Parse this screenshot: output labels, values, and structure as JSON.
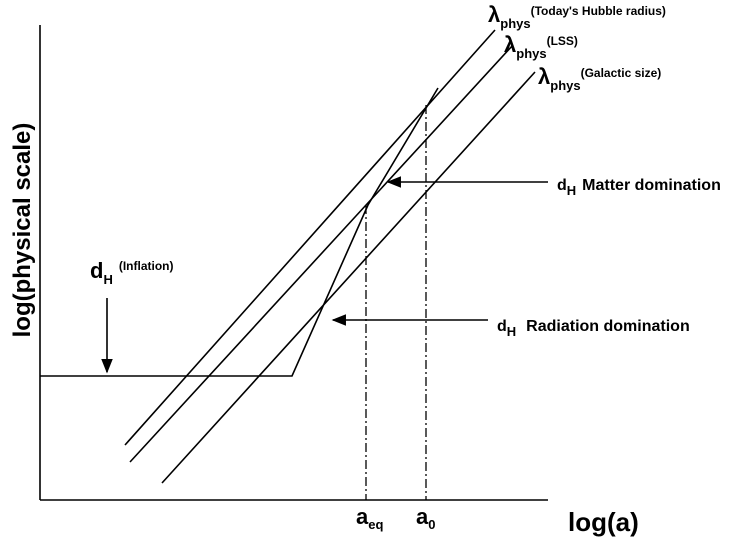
{
  "axes": {
    "y_label": "log(physical scale)",
    "x_label": "log(a)"
  },
  "scales": [
    {
      "symbol": "λ",
      "sub": "phys",
      "note": "(Today's Hubble radius)"
    },
    {
      "symbol": "λ",
      "sub": "phys",
      "note": "(LSS)"
    },
    {
      "symbol": "λ",
      "sub": "phys",
      "note": "(Galactic size)"
    }
  ],
  "horizons": [
    {
      "symbol": "d",
      "sub": "H",
      "note": "(Inflation)"
    },
    {
      "symbol": "d",
      "sub": "H",
      "note": "Matter domination"
    },
    {
      "symbol": "d",
      "sub": "H",
      "note": "Radiation domination"
    }
  ],
  "markers": [
    {
      "symbol": "a",
      "sub": "eq"
    },
    {
      "symbol": "a",
      "sub": "0"
    }
  ]
}
